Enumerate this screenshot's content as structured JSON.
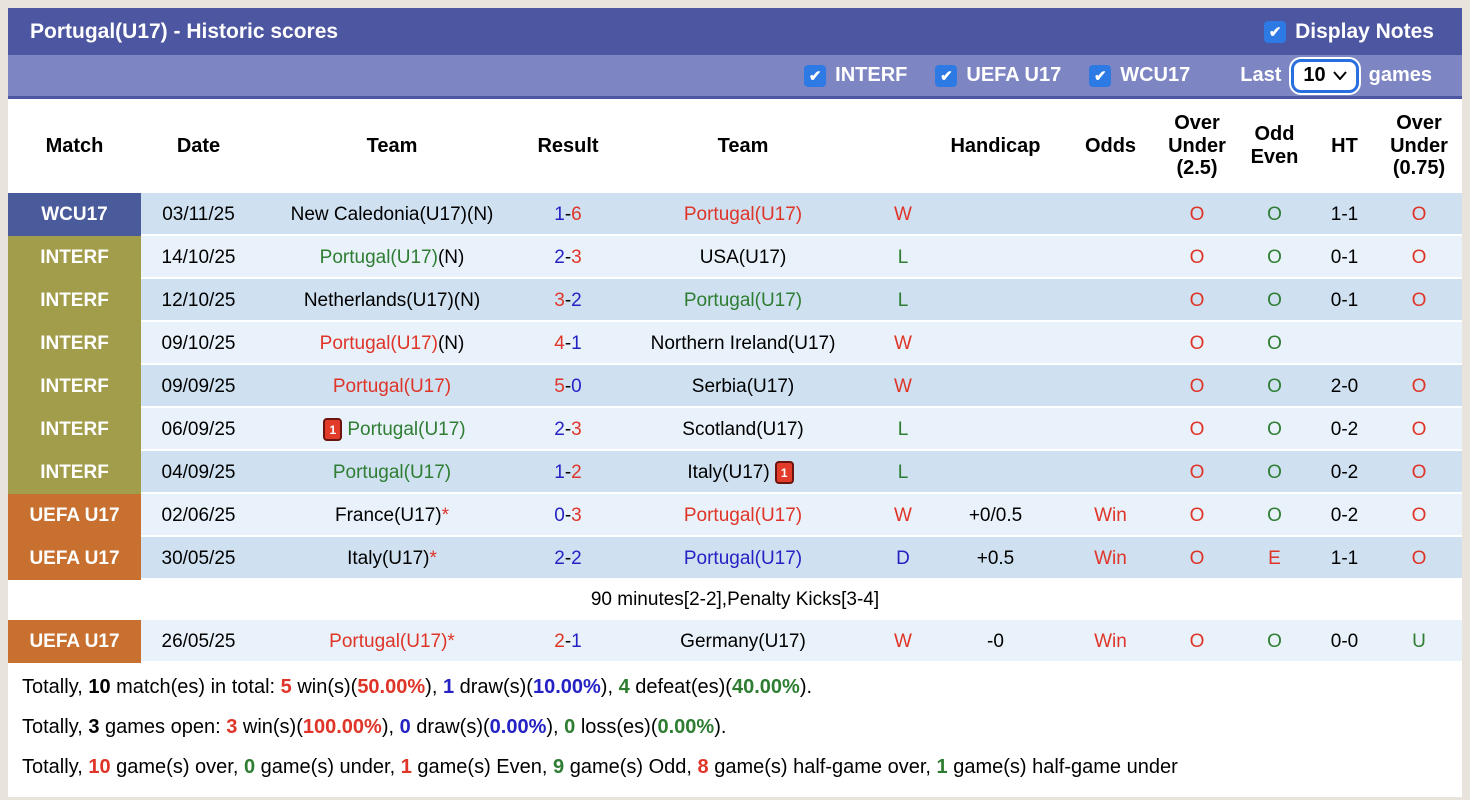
{
  "colors": {
    "titlebar_bg": "#4d56a0",
    "filterbar_bg": "#7d86c2",
    "checkbox_blue": "#2d7ae4",
    "league_wcu17": "#4a5b9b",
    "league_interf": "#a29d4b",
    "league_uefa": "#c8702f",
    "row_dark": "#cfe1f1",
    "row_light": "#e9f2fa",
    "red": "#df3428",
    "blue": "#2522c4",
    "green": "#2e7d32"
  },
  "header": {
    "title": "Portugal(U17) - Historic scores",
    "display_notes_label": "Display Notes",
    "display_notes_checked": true,
    "check_glyph": "✔",
    "filters": [
      {
        "label": "INTERF",
        "checked": true
      },
      {
        "label": "UEFA U17",
        "checked": true
      },
      {
        "label": "WCU17",
        "checked": true
      }
    ],
    "last_label": "Last",
    "last_value": "10",
    "games_label": "games"
  },
  "table": {
    "columns": [
      "Match",
      "Date",
      "Team",
      "Result",
      "Team",
      "",
      "Handicap",
      "Odds",
      "Over Under (2.5)",
      "Odd Even",
      "HT",
      "Over Under (0.75)"
    ],
    "rows": [
      {
        "league": "WCU17",
        "league_class": "wcu",
        "shade": "dark",
        "date": "03/11/25",
        "home": [
          {
            "t": "New Caledonia(U17)(N)",
            "c": "black"
          }
        ],
        "sh": "1",
        "shc": "blue",
        "sa": "6",
        "sac": "red",
        "away": [
          {
            "t": "Portugal(U17)",
            "c": "red"
          }
        ],
        "wdl": "W",
        "wdlc": "red",
        "handicap": "",
        "odds": "",
        "ou25": "O",
        "ou25c": "red",
        "oe": "O",
        "oec": "green",
        "ht": "1-1",
        "ou075": "O",
        "ou075c": "red"
      },
      {
        "league": "INTERF",
        "league_class": "interf",
        "shade": "light",
        "date": "14/10/25",
        "home": [
          {
            "t": "Portugal(U17)",
            "c": "green"
          },
          {
            "t": "(N)",
            "c": "black"
          }
        ],
        "sh": "2",
        "shc": "blue",
        "sa": "3",
        "sac": "red",
        "away": [
          {
            "t": "USA(U17)",
            "c": "black"
          }
        ],
        "wdl": "L",
        "wdlc": "green",
        "handicap": "",
        "odds": "",
        "ou25": "O",
        "ou25c": "red",
        "oe": "O",
        "oec": "green",
        "ht": "0-1",
        "ou075": "O",
        "ou075c": "red"
      },
      {
        "league": "INTERF",
        "league_class": "interf",
        "shade": "dark",
        "date": "12/10/25",
        "home": [
          {
            "t": "Netherlands(U17)(N)",
            "c": "black"
          }
        ],
        "sh": "3",
        "shc": "red",
        "sa": "2",
        "sac": "blue",
        "away": [
          {
            "t": "Portugal(U17)",
            "c": "green"
          }
        ],
        "wdl": "L",
        "wdlc": "green",
        "handicap": "",
        "odds": "",
        "ou25": "O",
        "ou25c": "red",
        "oe": "O",
        "oec": "green",
        "ht": "0-1",
        "ou075": "O",
        "ou075c": "red"
      },
      {
        "league": "INTERF",
        "league_class": "interf",
        "shade": "light",
        "date": "09/10/25",
        "home": [
          {
            "t": "Portugal(U17)",
            "c": "red"
          },
          {
            "t": "(N)",
            "c": "black"
          }
        ],
        "sh": "4",
        "shc": "red",
        "sa": "1",
        "sac": "blue",
        "away": [
          {
            "t": "Northern Ireland(U17)",
            "c": "black"
          }
        ],
        "wdl": "W",
        "wdlc": "red",
        "handicap": "",
        "odds": "",
        "ou25": "O",
        "ou25c": "red",
        "oe": "O",
        "oec": "green",
        "ht": "",
        "ou075": "",
        "ou075c": "red"
      },
      {
        "league": "INTERF",
        "league_class": "interf",
        "shade": "dark",
        "date": "09/09/25",
        "home": [
          {
            "t": "Portugal(U17)",
            "c": "red"
          }
        ],
        "sh": "5",
        "shc": "red",
        "sa": "0",
        "sac": "blue",
        "away": [
          {
            "t": "Serbia(U17)",
            "c": "black"
          }
        ],
        "wdl": "W",
        "wdlc": "red",
        "handicap": "",
        "odds": "",
        "ou25": "O",
        "ou25c": "red",
        "oe": "O",
        "oec": "green",
        "ht": "2-0",
        "ou075": "O",
        "ou075c": "red"
      },
      {
        "league": "INTERF",
        "league_class": "interf",
        "shade": "light",
        "date": "06/09/25",
        "home": [
          {
            "icon": "red-card",
            "t": "1"
          },
          {
            "t": "Portugal(U17)",
            "c": "green"
          }
        ],
        "sh": "2",
        "shc": "blue",
        "sa": "3",
        "sac": "red",
        "away": [
          {
            "t": "Scotland(U17)",
            "c": "black"
          }
        ],
        "wdl": "L",
        "wdlc": "green",
        "handicap": "",
        "odds": "",
        "ou25": "O",
        "ou25c": "red",
        "oe": "O",
        "oec": "green",
        "ht": "0-2",
        "ou075": "O",
        "ou075c": "red"
      },
      {
        "league": "INTERF",
        "league_class": "interf",
        "shade": "dark",
        "date": "04/09/25",
        "home": [
          {
            "t": "Portugal(U17)",
            "c": "green"
          }
        ],
        "sh": "1",
        "shc": "blue",
        "sa": "2",
        "sac": "red",
        "away": [
          {
            "t": "Italy(U17)",
            "c": "black"
          },
          {
            "icon": "red-card",
            "t": "1"
          }
        ],
        "wdl": "L",
        "wdlc": "green",
        "handicap": "",
        "odds": "",
        "ou25": "O",
        "ou25c": "red",
        "oe": "O",
        "oec": "green",
        "ht": "0-2",
        "ou075": "O",
        "ou075c": "red"
      },
      {
        "league": "UEFA U17",
        "league_class": "uefa",
        "shade": "light",
        "date": "02/06/25",
        "home": [
          {
            "t": "France(U17)",
            "c": "black"
          },
          {
            "t": "*",
            "c": "red"
          }
        ],
        "sh": "0",
        "shc": "blue",
        "sa": "3",
        "sac": "red",
        "away": [
          {
            "t": "Portugal(U17)",
            "c": "red"
          }
        ],
        "wdl": "W",
        "wdlc": "red",
        "handicap": "+0/0.5",
        "odds": "Win",
        "ou25": "O",
        "ou25c": "red",
        "oe": "O",
        "oec": "green",
        "ht": "0-2",
        "ou075": "O",
        "ou075c": "red"
      },
      {
        "league": "UEFA U17",
        "league_class": "uefa",
        "shade": "dark",
        "date": "30/05/25",
        "home": [
          {
            "t": "Italy(U17)",
            "c": "black"
          },
          {
            "t": "*",
            "c": "red"
          }
        ],
        "sh": "2",
        "shc": "blue",
        "sa": "2",
        "sac": "blue",
        "away": [
          {
            "t": "Portugal(U17)",
            "c": "blue"
          }
        ],
        "wdl": "D",
        "wdlc": "blue",
        "handicap": "+0.5",
        "odds": "Win",
        "ou25": "O",
        "ou25c": "red",
        "oe": "E",
        "oec": "red",
        "ht": "1-1",
        "ou075": "O",
        "ou075c": "red"
      },
      {
        "type": "note",
        "shade": "dark",
        "text": "90 minutes[2-2],Penalty Kicks[3-4]"
      },
      {
        "league": "UEFA U17",
        "league_class": "uefa",
        "shade": "light",
        "date": "26/05/25",
        "home": [
          {
            "t": "Portugal(U17)*",
            "c": "red"
          }
        ],
        "sh": "2",
        "shc": "red",
        "sa": "1",
        "sac": "blue",
        "away": [
          {
            "t": "Germany(U17)",
            "c": "black"
          }
        ],
        "wdl": "W",
        "wdlc": "red",
        "handicap": "-0",
        "odds": "Win",
        "ou25": "O",
        "ou25c": "red",
        "oe": "O",
        "oec": "green",
        "ht": "0-0",
        "ou075": "U",
        "ou075c": "green"
      }
    ]
  },
  "summary": {
    "lines": [
      [
        {
          "t": "Totally, "
        },
        {
          "t": "10",
          "b": true
        },
        {
          "t": " match(es) in total: "
        },
        {
          "t": "5",
          "c": "red",
          "b": true
        },
        {
          "t": " win(s)("
        },
        {
          "t": "50.00%",
          "c": "red",
          "b": true
        },
        {
          "t": "), "
        },
        {
          "t": "1",
          "c": "blue",
          "b": true
        },
        {
          "t": " draw(s)("
        },
        {
          "t": "10.00%",
          "c": "blue",
          "b": true
        },
        {
          "t": "), "
        },
        {
          "t": "4",
          "c": "green",
          "b": true
        },
        {
          "t": " defeat(es)("
        },
        {
          "t": "40.00%",
          "c": "green",
          "b": true
        },
        {
          "t": ")."
        }
      ],
      [
        {
          "t": "Totally, "
        },
        {
          "t": "3",
          "b": true
        },
        {
          "t": " games open: "
        },
        {
          "t": "3",
          "c": "red",
          "b": true
        },
        {
          "t": " win(s)("
        },
        {
          "t": "100.00%",
          "c": "red",
          "b": true
        },
        {
          "t": "), "
        },
        {
          "t": "0",
          "c": "blue",
          "b": true
        },
        {
          "t": " draw(s)("
        },
        {
          "t": "0.00%",
          "c": "blue",
          "b": true
        },
        {
          "t": "), "
        },
        {
          "t": "0",
          "c": "green",
          "b": true
        },
        {
          "t": " loss(es)("
        },
        {
          "t": "0.00%",
          "c": "green",
          "b": true
        },
        {
          "t": ")."
        }
      ],
      [
        {
          "t": "Totally, "
        },
        {
          "t": "10",
          "c": "red",
          "b": true
        },
        {
          "t": " game(s) over, "
        },
        {
          "t": "0",
          "c": "green",
          "b": true
        },
        {
          "t": " game(s) under, "
        },
        {
          "t": "1",
          "c": "red",
          "b": true
        },
        {
          "t": " game(s) Even, "
        },
        {
          "t": "9",
          "c": "green",
          "b": true
        },
        {
          "t": " game(s) Odd, "
        },
        {
          "t": "8",
          "c": "red",
          "b": true
        },
        {
          "t": " game(s) half-game over, "
        },
        {
          "t": "1",
          "c": "green",
          "b": true
        },
        {
          "t": " game(s) half-game under"
        }
      ]
    ]
  }
}
